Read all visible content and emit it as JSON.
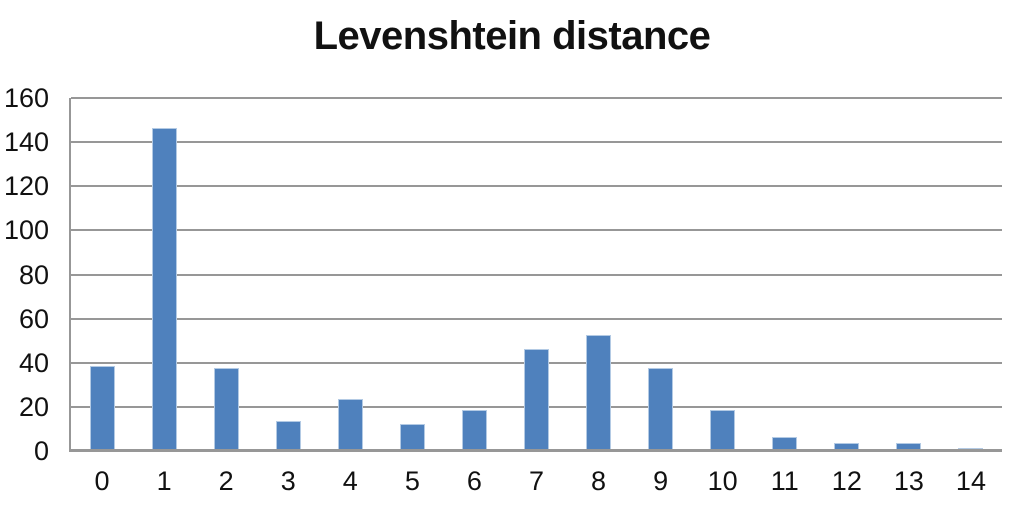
{
  "chart_data": {
    "type": "bar",
    "title": "Levenshtein distance",
    "categories": [
      "0",
      "1",
      "2",
      "3",
      "4",
      "5",
      "6",
      "7",
      "8",
      "9",
      "10",
      "11",
      "12",
      "13",
      "14"
    ],
    "values": [
      38,
      146,
      37,
      13,
      23,
      12,
      18,
      46,
      52,
      37,
      18,
      6,
      3,
      3,
      1
    ],
    "xlabel": "",
    "ylabel": "",
    "ylim": [
      0,
      160
    ],
    "yticks": [
      0,
      20,
      40,
      60,
      80,
      100,
      120,
      140,
      160
    ],
    "grid": "horizontal-only",
    "legend": "none",
    "colors": {
      "bar_fill": "#4f81bd",
      "bar_edge": "#b3cae4",
      "gridline": "#979797",
      "text": "#111111",
      "background": "#ffffff"
    }
  }
}
